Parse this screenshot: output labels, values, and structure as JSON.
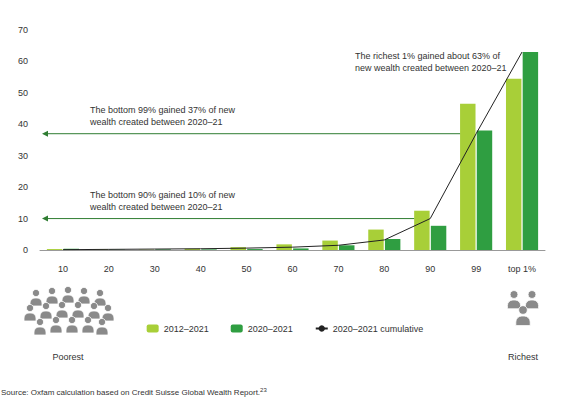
{
  "chart_data": {
    "type": "bar",
    "categories": [
      "10",
      "20",
      "30",
      "40",
      "50",
      "60",
      "70",
      "80",
      "90",
      "99",
      "top 1%"
    ],
    "series": [
      {
        "name": "2012–2021",
        "type": "bar",
        "color": "#a8cf38",
        "values": [
          0.3,
          0.2,
          0.1,
          0.4,
          0.9,
          1.8,
          3.0,
          6.5,
          12.5,
          46.5,
          54.5
        ]
      },
      {
        "name": "2020–2021",
        "type": "bar",
        "color": "#2f9e41",
        "values": [
          0.4,
          0.1,
          0.2,
          0.2,
          0.3,
          0.5,
          1.5,
          3.5,
          7.7,
          38,
          63
        ]
      },
      {
        "name": "2020–2021 cumulative",
        "type": "line",
        "color": "#222222",
        "values": [
          0.1,
          0.2,
          0.3,
          0.4,
          0.6,
          0.9,
          1.5,
          3.2,
          10,
          37,
          63
        ]
      }
    ],
    "ylim": [
      0,
      70
    ],
    "yticks": [
      0,
      10,
      20,
      30,
      40,
      50,
      60,
      70
    ],
    "grid": false,
    "legend": "bottom",
    "annotations": [
      {
        "text": "The richest 1% gained about 63% of\nnew wealth created between 2020–21"
      },
      {
        "text": "The bottom 99% gained 37% of new\nwealth created between 2020–21",
        "y": 37
      },
      {
        "text": "The bottom 90% gained 10% of new\nwealth created between 2020–21",
        "y": 10
      }
    ],
    "scale_labels": [
      "Poorest",
      "Richest"
    ],
    "source": "Source: Oxfam calculation based on Credit Suisse Global Wealth Report.",
    "source_note": "23"
  }
}
